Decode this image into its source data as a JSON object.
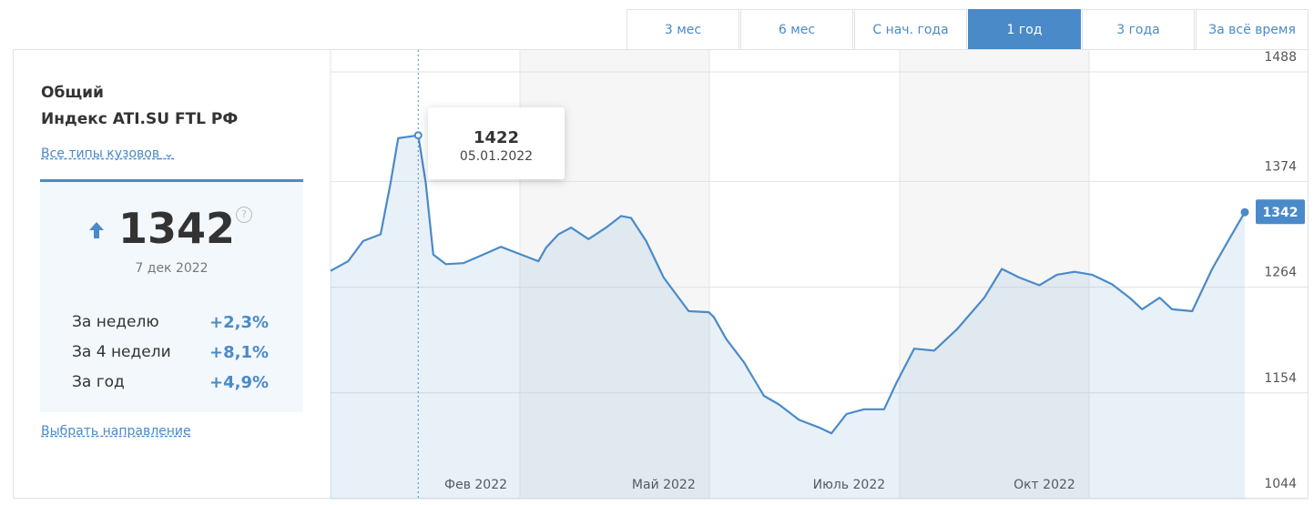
{
  "tabs": [
    "3 мес",
    "6 мес",
    "С нач. года",
    "1 год",
    "3 года",
    "За всё время"
  ],
  "sidebar": {
    "title": "Общий",
    "subtitle": "Индекс ATI.SU FTL РФ",
    "filter": "Все типы кузовов",
    "value": "1342",
    "date": "7 дек 2022",
    "stats": [
      [
        "За неделю",
        "+2,3%"
      ],
      [
        "За 4 недели",
        "+8,1%"
      ],
      [
        "За год",
        "+4,9%"
      ]
    ],
    "link": "Выбрать направление"
  },
  "chart_data": {
    "type": "line",
    "color": "#4a8ac9",
    "x": [
      0,
      7,
      13,
      20,
      24,
      27,
      35,
      38,
      41,
      46,
      53,
      61,
      68,
      75,
      83,
      86,
      91,
      96,
      103,
      110,
      116,
      120,
      126,
      133,
      143,
      151,
      153,
      158,
      165,
      173,
      179,
      187,
      195,
      200,
      206,
      213,
      221,
      226,
      233,
      241,
      250,
      261,
      268,
      275,
      283,
      290,
      297,
      304,
      312,
      319,
      324,
      331,
      336,
      344,
      352,
      359,
      365
    ],
    "values": [
      1281,
      1291,
      1312,
      1319,
      1373,
      1419,
      1422,
      1373,
      1298,
      1288,
      1289,
      1298,
      1306,
      1299,
      1291,
      1305,
      1319,
      1326,
      1314,
      1326,
      1338,
      1336,
      1312,
      1274,
      1239,
      1238,
      1233,
      1210,
      1186,
      1151,
      1142,
      1126,
      1118,
      1112,
      1132,
      1137,
      1137,
      1165,
      1200,
      1198,
      1220,
      1253,
      1283,
      1274,
      1266,
      1277,
      1280,
      1277,
      1267,
      1253,
      1241,
      1253,
      1241,
      1239,
      1283,
      1315,
      1342
    ],
    "xlim": [
      0,
      365
    ],
    "xticks": [
      {
        "value": 58,
        "label": "Фев 2022"
      },
      {
        "value": 133,
        "label": "Май 2022"
      },
      {
        "value": 207,
        "label": "Июль 2022"
      },
      {
        "value": 285,
        "label": "Окт 2022"
      }
    ],
    "ylim": [
      1044,
      1488
    ],
    "yticks": [
      1044,
      1154,
      1264,
      1374,
      1488
    ],
    "grid": true,
    "tooltip_date": "05.01.2022"
  }
}
